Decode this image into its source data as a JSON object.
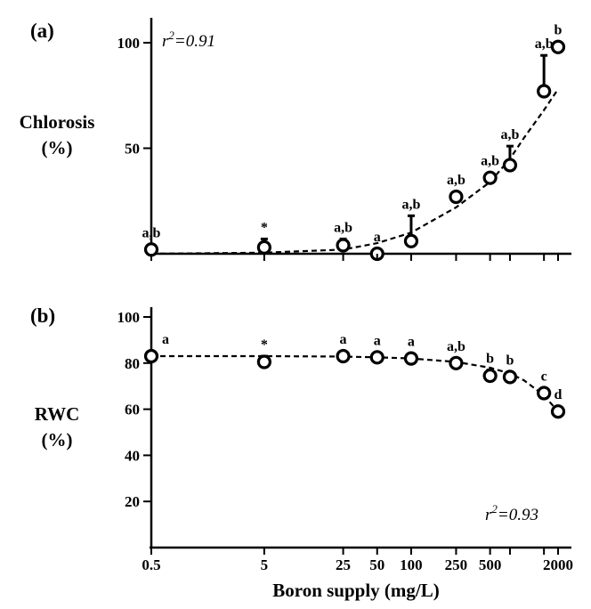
{
  "chart_data": [
    {
      "type": "scatter",
      "panel_label": "(a)",
      "ylabel": [
        "Chlorosis",
        "(%)"
      ],
      "ylim": [
        0,
        110
      ],
      "yticks": [
        50,
        100
      ],
      "x_scale": "log",
      "x": [
        0.5,
        5,
        25,
        50,
        100,
        250,
        500,
        750,
        1500,
        2000
      ],
      "series": [
        {
          "values": [
            2,
            3,
            4,
            0,
            6,
            27,
            36,
            42,
            77,
            98
          ],
          "error_upper": [
            0,
            4,
            3,
            0,
            12,
            0,
            2,
            9,
            17,
            2
          ],
          "labels": [
            "a,b",
            "*",
            "a,b",
            "a",
            "a,b",
            "a,b",
            "a,b",
            "a,b",
            "a,b",
            "b"
          ]
        }
      ],
      "fit": {
        "kind": "dashed",
        "x_start": 0.5,
        "x_end": 2000,
        "x": [
          0.5,
          5,
          25,
          50,
          100,
          250,
          500,
          750,
          1000,
          1500,
          2000
        ],
        "y": [
          0,
          0.5,
          2,
          5,
          10,
          22,
          34,
          45,
          55,
          68,
          78
        ]
      },
      "annotation": {
        "lhs": "r",
        "exponent": "2",
        "rhs": "=0.91"
      }
    },
    {
      "type": "scatter",
      "panel_label": "(b)",
      "ylabel": [
        "RWC",
        "(%)"
      ],
      "ylim": [
        0,
        100
      ],
      "yticks": [
        20,
        40,
        60,
        80,
        100
      ],
      "x_scale": "log",
      "x": [
        0.5,
        5,
        25,
        50,
        100,
        250,
        500,
        750,
        1500,
        2000
      ],
      "series": [
        {
          "values": [
            83,
            80.5,
            83,
            82.5,
            82,
            80,
            74.5,
            74,
            67,
            59
          ],
          "error_upper": [
            0,
            2.5,
            0,
            0,
            0,
            0,
            2.5,
            0,
            0,
            2
          ],
          "labels": [
            "a",
            "*",
            "a",
            "a",
            "a",
            "a,b",
            "b",
            "b",
            "c",
            "d"
          ]
        }
      ],
      "fit": {
        "kind": "dashed",
        "x_start": 0.5,
        "x_end": 2000,
        "x": [
          0.5,
          5,
          25,
          50,
          100,
          250,
          500,
          750,
          1000,
          1500,
          2000
        ],
        "y": [
          83,
          83,
          82.8,
          82.5,
          82,
          80.5,
          78,
          75.5,
          72.5,
          66,
          59
        ]
      },
      "annotation": {
        "lhs": "r",
        "exponent": "2",
        "rhs": "=0.93"
      }
    }
  ],
  "xaxis": {
    "label": "Boron supply (mg/L)",
    "ticks": [
      0.5,
      5,
      25,
      50,
      100,
      250,
      500,
      2000
    ],
    "tick_labels": [
      "0.5",
      "5",
      "25",
      "50",
      "100",
      "250",
      "500",
      "2000"
    ],
    "minor_ticks": [
      750,
      1500
    ]
  }
}
